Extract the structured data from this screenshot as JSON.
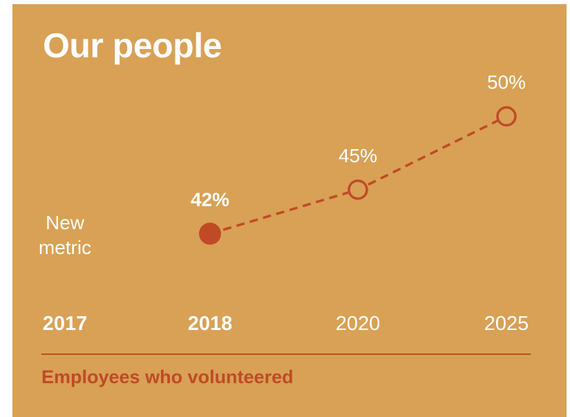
{
  "header": {
    "title": "Our people"
  },
  "chart_data": {
    "type": "line",
    "categories": [
      "2017",
      "2018",
      "2020",
      "2025"
    ],
    "values": [
      null,
      42,
      45,
      50
    ],
    "data_labels": [
      "",
      "42%",
      "45%",
      "50%"
    ],
    "point_status": [
      "none",
      "actual",
      "target",
      "target"
    ],
    "note": [
      "New",
      "metric"
    ],
    "note_category": "2017",
    "bold_categories": [
      "2017",
      "2018"
    ],
    "caption": "Employees who volunteered",
    "ylim": [
      36,
      52
    ],
    "grid": false,
    "line_style": "dashed"
  },
  "colors": {
    "background": "#d8a155",
    "accent": "#c04a26",
    "text": "#ffffff"
  }
}
